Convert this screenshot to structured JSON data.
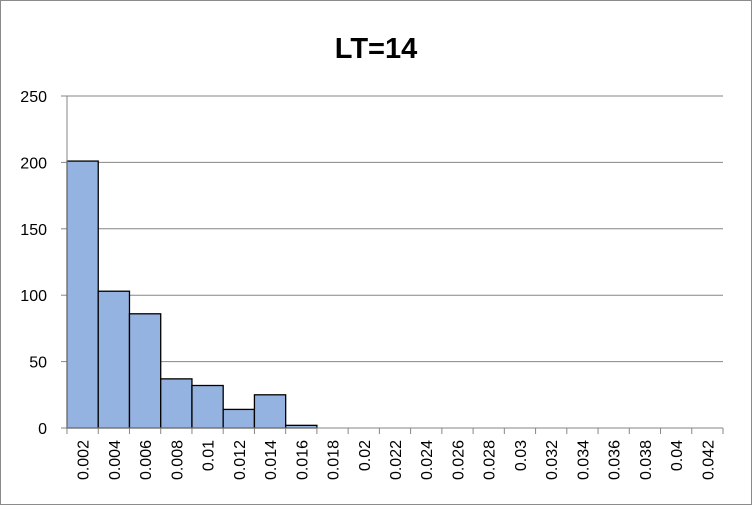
{
  "chart_data": {
    "type": "bar",
    "title": "LT=14",
    "xlabel": "",
    "ylabel": "",
    "categories": [
      "0.002",
      "0.004",
      "0.006",
      "0.008",
      "0.01",
      "0.012",
      "0.014",
      "0.016",
      "0.018",
      "0.02",
      "0.022",
      "0.024",
      "0.026",
      "0.028",
      "0.03",
      "0.032",
      "0.034",
      "0.036",
      "0.038",
      "0.04",
      "0.042"
    ],
    "values": [
      201,
      103,
      86,
      37,
      32,
      14,
      25,
      2,
      0,
      0,
      0,
      0,
      0,
      0,
      0,
      0,
      0,
      0,
      0,
      0,
      0
    ],
    "ylim": [
      0,
      250
    ],
    "yticks": [
      "0",
      "50",
      "100",
      "150",
      "200",
      "250"
    ],
    "grid": true,
    "legend": "none",
    "bar_color": "#95b3e0",
    "bar_edge_color": "#000000",
    "grid_color": "#868686",
    "axis_color": "#868686"
  }
}
